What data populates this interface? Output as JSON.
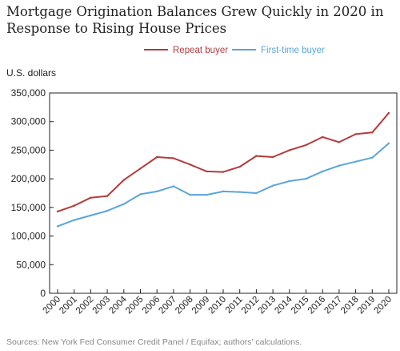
{
  "chart_data": {
    "type": "line",
    "title": "Mortgage Origination Balances Grew Quickly in 2020 in Response to Rising House Prices",
    "ylabel": "U.S. dollars",
    "xlabel": "",
    "x": [
      "2000",
      "2001",
      "2002",
      "2003",
      "2004",
      "2005",
      "2006",
      "2007",
      "2008",
      "2009",
      "2010",
      "2011",
      "2012",
      "2013",
      "2014",
      "2015",
      "2016",
      "2017",
      "2018",
      "2019",
      "2020"
    ],
    "ylim": [
      0,
      350000
    ],
    "yticks": [
      "0",
      "50,000",
      "100,000",
      "150,000",
      "200,000",
      "250,000",
      "300,000",
      "350,000"
    ],
    "ytick_values": [
      0,
      50000,
      100000,
      150000,
      200000,
      250000,
      300000,
      350000
    ],
    "grid": false,
    "legend": "top",
    "series": [
      {
        "name": "Repeat buyer",
        "color": "#b33b3b",
        "values": [
          143000,
          153000,
          167000,
          170000,
          198000,
          218000,
          238000,
          236000,
          225000,
          213000,
          212000,
          221000,
          240000,
          238000,
          250000,
          259000,
          273000,
          264000,
          278000,
          281000,
          315000
        ]
      },
      {
        "name": "First-time buyer",
        "color": "#5aa5d8",
        "values": [
          117000,
          128000,
          136000,
          144000,
          156000,
          173000,
          178000,
          187000,
          172000,
          172000,
          178000,
          177000,
          175000,
          188000,
          196000,
          200000,
          213000,
          223000,
          230000,
          237000,
          262000
        ]
      }
    ],
    "source": "Sources: New York Fed Consumer Credit Panel / Equifax; authors' calculations."
  }
}
